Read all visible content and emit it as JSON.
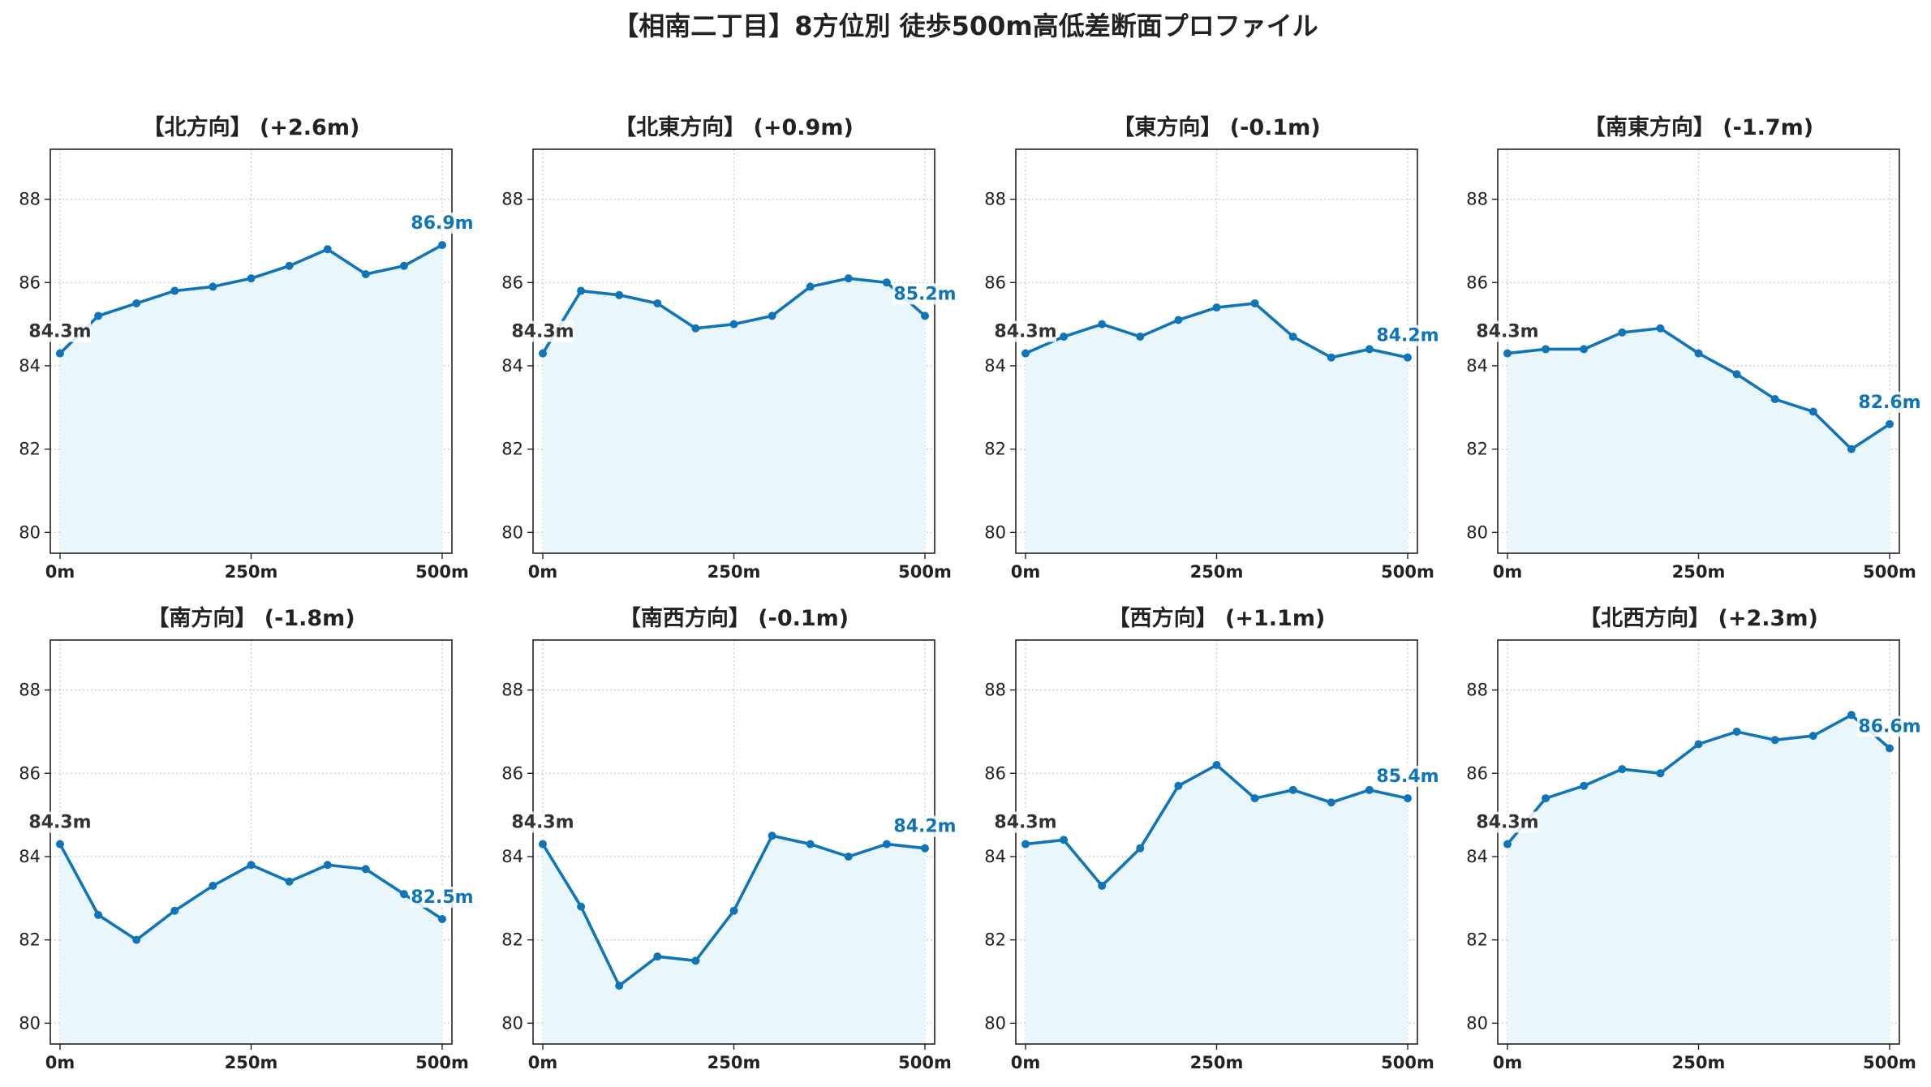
{
  "title": "【相南二丁目】8方位別 徒歩500m高低差断面プロファイル",
  "colors": {
    "line": "#0f75b8",
    "fill": "#e9f6fc",
    "start_label": "#333333",
    "end_label": "#0f75b8",
    "grid": "#c8c8c8"
  },
  "chart_data": [
    {
      "type": "area",
      "title": "【北方向】 (+2.6m)",
      "x": [
        0,
        50,
        100,
        150,
        200,
        250,
        300,
        350,
        400,
        450,
        500
      ],
      "values": [
        84.3,
        85.2,
        85.5,
        85.8,
        85.9,
        86.1,
        86.4,
        86.8,
        86.2,
        86.4,
        86.9
      ],
      "start_label": "84.3m",
      "end_label": "86.9m",
      "ylim": [
        79.5,
        89.2
      ],
      "yticks": [
        80,
        82,
        84,
        86,
        88
      ],
      "xticks": [
        0,
        250,
        500
      ],
      "xtick_labels": [
        "0m",
        "250m",
        "500m"
      ],
      "grid": true
    },
    {
      "type": "area",
      "title": "【北東方向】 (+0.9m)",
      "x": [
        0,
        50,
        100,
        150,
        200,
        250,
        300,
        350,
        400,
        450,
        500
      ],
      "values": [
        84.3,
        85.8,
        85.7,
        85.5,
        84.9,
        85.0,
        85.2,
        85.9,
        86.1,
        86.0,
        85.2
      ],
      "start_label": "84.3m",
      "end_label": "85.2m",
      "ylim": [
        79.5,
        89.2
      ],
      "yticks": [
        80,
        82,
        84,
        86,
        88
      ],
      "xticks": [
        0,
        250,
        500
      ],
      "xtick_labels": [
        "0m",
        "250m",
        "500m"
      ],
      "grid": true
    },
    {
      "type": "area",
      "title": "【東方向】 (-0.1m)",
      "x": [
        0,
        50,
        100,
        150,
        200,
        250,
        300,
        350,
        400,
        450,
        500
      ],
      "values": [
        84.3,
        84.7,
        85.0,
        84.7,
        85.1,
        85.4,
        85.5,
        84.7,
        84.2,
        84.4,
        84.2
      ],
      "start_label": "84.3m",
      "end_label": "84.2m",
      "ylim": [
        79.5,
        89.2
      ],
      "yticks": [
        80,
        82,
        84,
        86,
        88
      ],
      "xticks": [
        0,
        250,
        500
      ],
      "xtick_labels": [
        "0m",
        "250m",
        "500m"
      ],
      "grid": true
    },
    {
      "type": "area",
      "title": "【南東方向】 (-1.7m)",
      "x": [
        0,
        50,
        100,
        150,
        200,
        250,
        300,
        350,
        400,
        450,
        500
      ],
      "values": [
        84.3,
        84.4,
        84.4,
        84.8,
        84.9,
        84.3,
        83.8,
        83.2,
        82.9,
        82.0,
        82.6
      ],
      "start_label": "84.3m",
      "end_label": "82.6m",
      "ylim": [
        79.5,
        89.2
      ],
      "yticks": [
        80,
        82,
        84,
        86,
        88
      ],
      "xticks": [
        0,
        250,
        500
      ],
      "xtick_labels": [
        "0m",
        "250m",
        "500m"
      ],
      "grid": true
    },
    {
      "type": "area",
      "title": "【南方向】 (-1.8m)",
      "x": [
        0,
        50,
        100,
        150,
        200,
        250,
        300,
        350,
        400,
        450,
        500
      ],
      "values": [
        84.3,
        82.6,
        82.0,
        82.7,
        83.3,
        83.8,
        83.4,
        83.8,
        83.7,
        83.1,
        82.5
      ],
      "start_label": "84.3m",
      "end_label": "82.5m",
      "ylim": [
        79.5,
        89.2
      ],
      "yticks": [
        80,
        82,
        84,
        86,
        88
      ],
      "xticks": [
        0,
        250,
        500
      ],
      "xtick_labels": [
        "0m",
        "250m",
        "500m"
      ],
      "grid": true
    },
    {
      "type": "area",
      "title": "【南西方向】 (-0.1m)",
      "x": [
        0,
        50,
        100,
        150,
        200,
        250,
        300,
        350,
        400,
        450,
        500
      ],
      "values": [
        84.3,
        82.8,
        80.9,
        81.6,
        81.5,
        82.7,
        84.5,
        84.3,
        84.0,
        84.3,
        84.2
      ],
      "start_label": "84.3m",
      "end_label": "84.2m",
      "ylim": [
        79.5,
        89.2
      ],
      "yticks": [
        80,
        82,
        84,
        86,
        88
      ],
      "xticks": [
        0,
        250,
        500
      ],
      "xtick_labels": [
        "0m",
        "250m",
        "500m"
      ],
      "grid": true
    },
    {
      "type": "area",
      "title": "【西方向】 (+1.1m)",
      "x": [
        0,
        50,
        100,
        150,
        200,
        250,
        300,
        350,
        400,
        450,
        500
      ],
      "values": [
        84.3,
        84.4,
        83.3,
        84.2,
        85.7,
        86.2,
        85.4,
        85.6,
        85.3,
        85.6,
        85.4
      ],
      "start_label": "84.3m",
      "end_label": "85.4m",
      "ylim": [
        79.5,
        89.2
      ],
      "yticks": [
        80,
        82,
        84,
        86,
        88
      ],
      "xticks": [
        0,
        250,
        500
      ],
      "xtick_labels": [
        "0m",
        "250m",
        "500m"
      ],
      "grid": true
    },
    {
      "type": "area",
      "title": "【北西方向】 (+2.3m)",
      "x": [
        0,
        50,
        100,
        150,
        200,
        250,
        300,
        350,
        400,
        450,
        500
      ],
      "values": [
        84.3,
        85.4,
        85.7,
        86.1,
        86.0,
        86.7,
        87.0,
        86.8,
        86.9,
        87.4,
        86.6
      ],
      "start_label": "84.3m",
      "end_label": "86.6m",
      "ylim": [
        79.5,
        89.2
      ],
      "yticks": [
        80,
        82,
        84,
        86,
        88
      ],
      "xticks": [
        0,
        250,
        500
      ],
      "xtick_labels": [
        "0m",
        "250m",
        "500m"
      ],
      "grid": true
    }
  ]
}
